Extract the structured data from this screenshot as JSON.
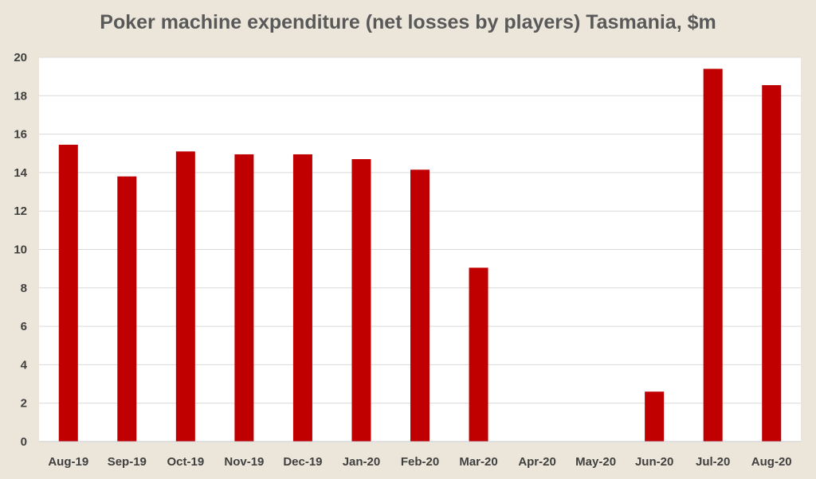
{
  "chart_data": {
    "type": "bar",
    "title": "Poker machine expenditure (net losses by players) Tasmania, $m",
    "xlabel": "",
    "ylabel": "",
    "categories": [
      "Aug-19",
      "Sep-19",
      "Oct-19",
      "Nov-19",
      "Dec-19",
      "Jan-20",
      "Feb-20",
      "Mar-20",
      "Apr-20",
      "May-20",
      "Jun-20",
      "Jul-20",
      "Aug-20"
    ],
    "values": [
      15.45,
      13.8,
      15.1,
      14.95,
      14.95,
      14.7,
      14.15,
      9.05,
      0,
      0,
      2.6,
      19.4,
      18.55
    ],
    "ylim": [
      0,
      20
    ],
    "yticks": [
      "0",
      "2",
      "4",
      "6",
      "8",
      "10",
      "12",
      "14",
      "16",
      "18",
      "20"
    ],
    "grid": true,
    "legend": "none",
    "colors": {
      "bar": "#c00000",
      "background": "#ebe6d9",
      "plot_background": "#ffffff",
      "grid": "#d9d9d9"
    }
  }
}
